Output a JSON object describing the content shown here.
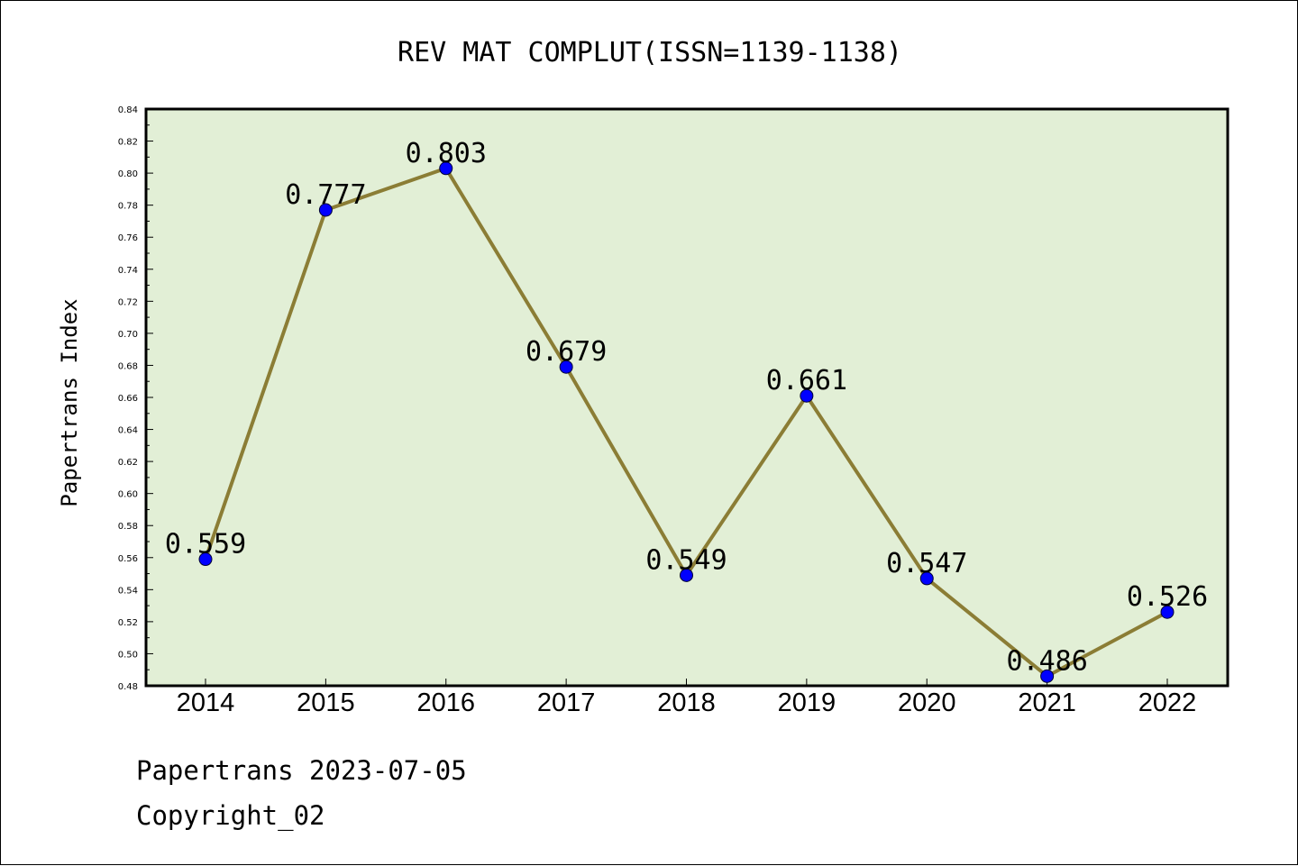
{
  "chart_data": {
    "type": "line",
    "title": "REV MAT COMPLUT(ISSN=1139-1138)",
    "ylabel": "Papertrans Index",
    "xlabel": "",
    "categories": [
      "2014",
      "2015",
      "2016",
      "2017",
      "2018",
      "2019",
      "2020",
      "2021",
      "2022"
    ],
    "values": [
      0.559,
      0.777,
      0.803,
      0.679,
      0.549,
      0.661,
      0.547,
      0.486,
      0.526
    ],
    "data_labels": [
      "0.559",
      "0.777",
      "0.803",
      "0.679",
      "0.549",
      "0.661",
      "0.547",
      "0.486",
      "0.526"
    ],
    "ylim": [
      0.48,
      0.84
    ],
    "yticks": [
      "0.48",
      "0.50",
      "0.52",
      "0.54",
      "0.56",
      "0.58",
      "0.60",
      "0.62",
      "0.64",
      "0.66",
      "0.68",
      "0.70",
      "0.72",
      "0.74",
      "0.76",
      "0.78",
      "0.80",
      "0.82",
      "0.84"
    ],
    "colors": {
      "line": "#8b7d35",
      "marker": "#0000ff",
      "plot_background": "#e2efd6"
    },
    "grid": false
  },
  "footer": {
    "line1": "Papertrans 2023-07-05",
    "line2": "Copyright_02"
  }
}
